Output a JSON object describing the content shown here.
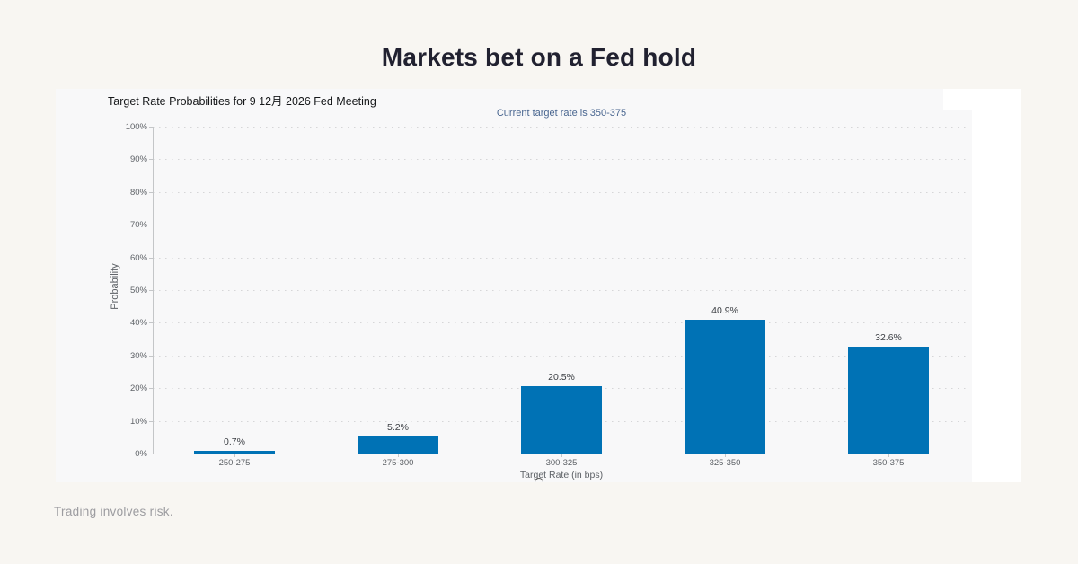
{
  "page": {
    "heading": "Markets bet on a Fed hold",
    "footer": "Trading involves risk.",
    "background_color": "#f8f6f2"
  },
  "chart_data": {
    "type": "bar",
    "title": "Target Rate Probabilities for 9 12月 2026 Fed Meeting",
    "subtitle": "Current target rate is 350-375",
    "categories": [
      "250-275",
      "275-300",
      "300-325",
      "325-350",
      "350-375"
    ],
    "values": [
      0.7,
      5.2,
      20.5,
      40.9,
      32.6
    ],
    "value_labels": [
      "0.7%",
      "5.2%",
      "20.5%",
      "40.9%",
      "32.6%"
    ],
    "xlabel": "Target Rate (in bps)",
    "ylabel": "Probability",
    "ylim": [
      0,
      100
    ],
    "ytick_step": 10,
    "ytick_labels": [
      "0%",
      "10%",
      "20%",
      "30%",
      "40%",
      "50%",
      "60%",
      "70%",
      "80%",
      "90%",
      "100%"
    ],
    "grid": "horizontal-dotted",
    "legend": "none",
    "bar_color": "#0072b5",
    "subtitle_color": "#48658f"
  }
}
